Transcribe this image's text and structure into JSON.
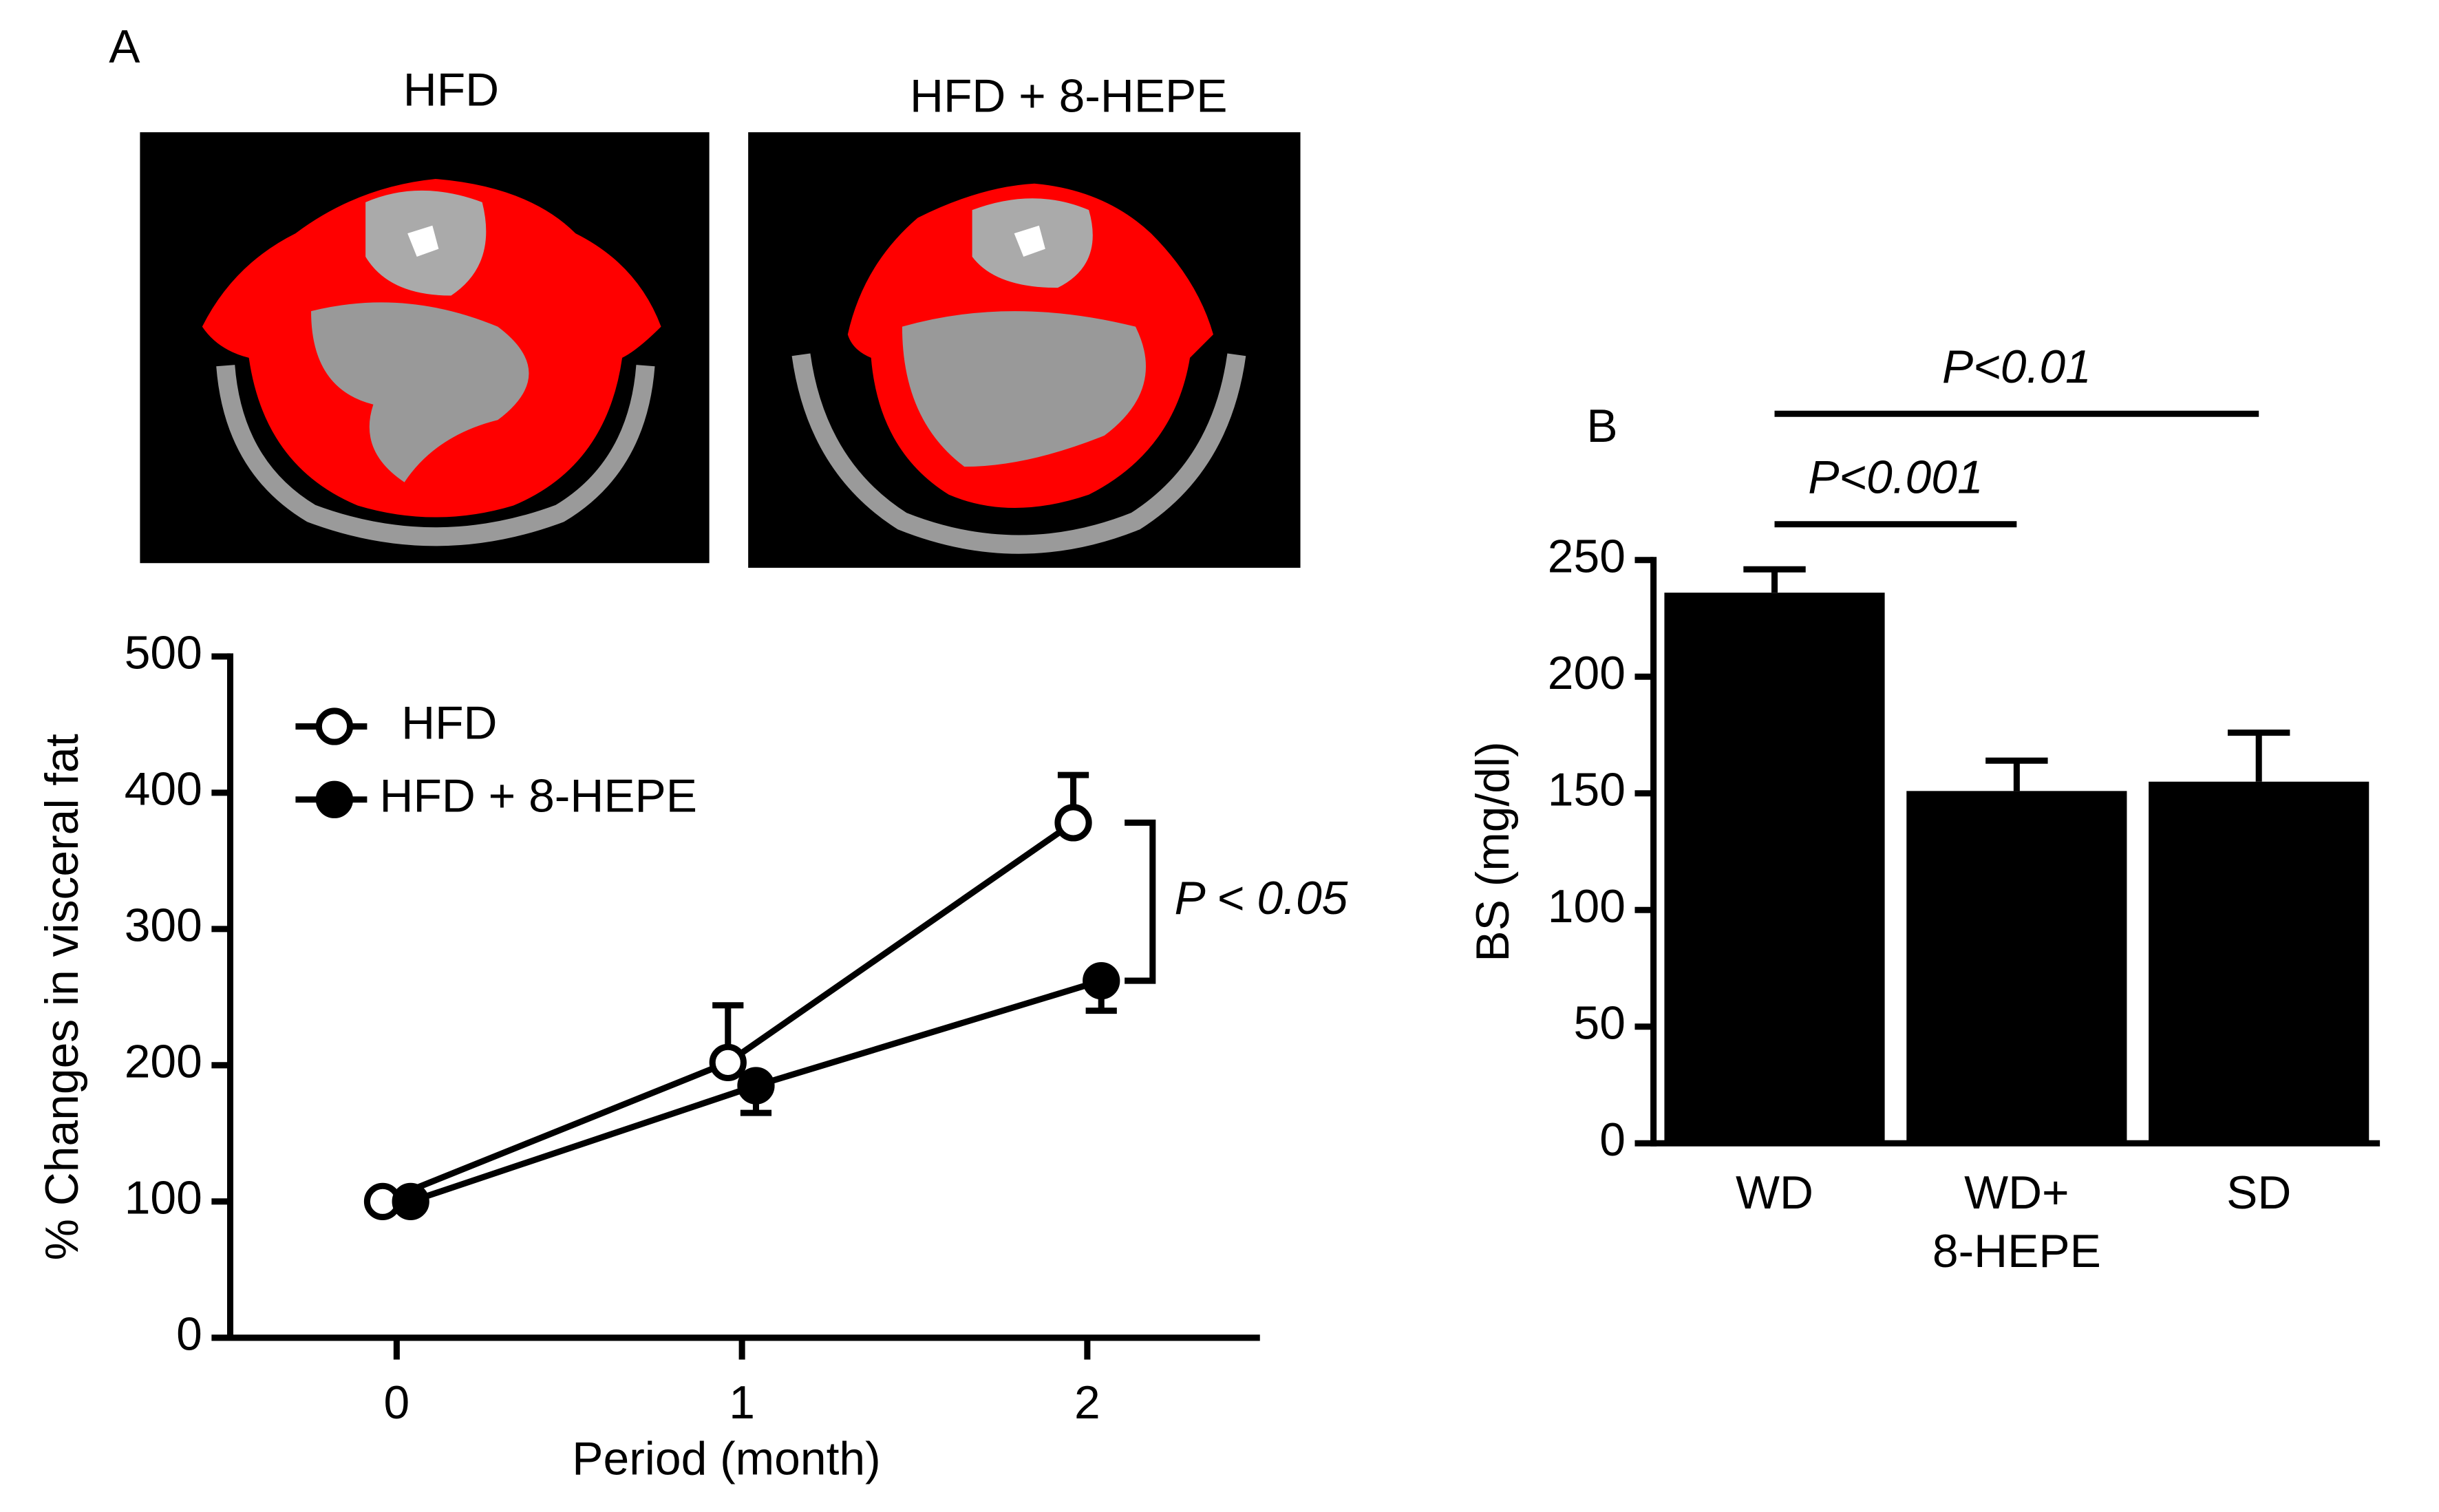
{
  "panel_labels": [
    "A",
    "B"
  ],
  "images": [
    {
      "title": "HFD"
    },
    {
      "title": "HFD + 8-HEPE"
    }
  ],
  "chart_data": [
    {
      "type": "line",
      "x": [
        0,
        1,
        2
      ],
      "series": [
        {
          "name": "HFD",
          "marker": "open",
          "color": "#000000",
          "values": [
            100,
            202,
            378
          ],
          "errors": [
            0,
            42,
            35
          ]
        },
        {
          "name": "HFD + 8-HEPE",
          "marker": "filled",
          "color": "#000000",
          "values": [
            100,
            185,
            262
          ],
          "errors": [
            0,
            20,
            22
          ]
        }
      ],
      "xlabel": "Period (month)",
      "ylabel": "% Changes in visceral fat",
      "xlim": [
        -0.5,
        2.5
      ],
      "ylim": [
        0,
        500
      ],
      "xticks": [
        0,
        1,
        2
      ],
      "yticks": [
        0,
        100,
        200,
        300,
        400,
        500
      ],
      "annotations": [
        "P < 0.05"
      ]
    },
    {
      "type": "bar",
      "categories": [
        "WD",
        "WD+\n8-HEPE",
        "SD"
      ],
      "values": [
        236,
        151,
        155
      ],
      "errors": [
        10,
        13,
        21
      ],
      "color": "#000000",
      "ylabel": "BS (mg/dl)",
      "ylim": [
        0,
        250
      ],
      "yticks": [
        0,
        50,
        100,
        150,
        200,
        250
      ],
      "annotations": [
        "P<0.001",
        "P<0.01"
      ]
    }
  ]
}
